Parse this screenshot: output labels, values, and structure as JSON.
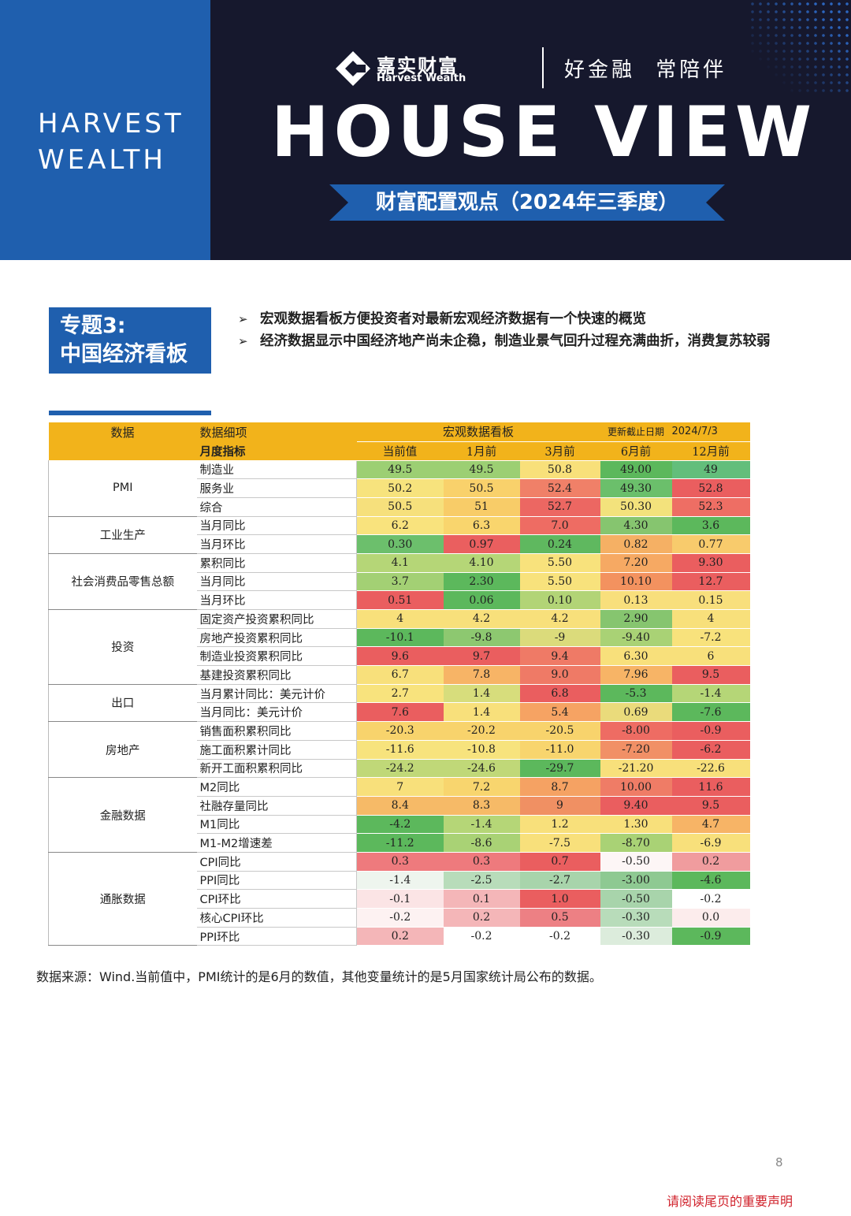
{
  "header": {
    "side_brand_line1": "HARVEST",
    "side_brand_line2": "WEALTH",
    "logo_cn": "嘉实财富",
    "logo_en": "Harvest Wealth",
    "slogan": "好金融 常陪伴",
    "title": "HOUSE VIEW",
    "subtitle": "财富配置观点（2024年三季度）",
    "colors": {
      "navy": "#16182d",
      "brand_blue": "#1f5fae"
    }
  },
  "topic": {
    "line1": "专题3:",
    "line2": "中国经济看板",
    "bullets": [
      "宏观数据看板方便投资者对最新宏观经济数据有一个快速的概览",
      "经济数据显示中国经济地产尚未企稳，制造业景气回升过程充满曲折，消费复苏较弱"
    ]
  },
  "table": {
    "header_row1": {
      "col_data": "数据",
      "col_detail": "数据细项",
      "dashboard_title": "宏观数据看板",
      "update_label": "更新截止日期",
      "update_date": "2024/7/3"
    },
    "header_row2": {
      "section_label": "月度指标",
      "periods": [
        "当前值",
        "1月前",
        "3月前",
        "6月前",
        "12月前"
      ]
    },
    "groups": [
      {
        "name": "PMI",
        "rows": [
          {
            "label": "制造业",
            "values": [
              "49.5",
              "49.5",
              "50.8",
              "49.00",
              "49"
            ],
            "colors": [
              "#9ccf73",
              "#9ccf73",
              "#f8e07a",
              "#5cb85c",
              "#63be7b"
            ]
          },
          {
            "label": "服务业",
            "values": [
              "50.2",
              "50.5",
              "52.4",
              "49.30",
              "52.8"
            ],
            "colors": [
              "#f7e37d",
              "#f9d16b",
              "#f08068",
              "#6bbf6b",
              "#ea5e5f"
            ]
          },
          {
            "label": "综合",
            "values": [
              "50.5",
              "51",
              "52.7",
              "50.30",
              "52.3"
            ],
            "colors": [
              "#f6e07c",
              "#f8cc68",
              "#ec6762",
              "#f3e27c",
              "#ee6e64"
            ]
          }
        ]
      },
      {
        "name": "工业生产",
        "rows": [
          {
            "label": "当月同比",
            "values": [
              "6.2",
              "6.3",
              "7.0",
              "4.30",
              "3.6"
            ],
            "colors": [
              "#f9e37d",
              "#f9d56d",
              "#ee6c63",
              "#86c56f",
              "#5cb85c"
            ]
          },
          {
            "label": "当月环比",
            "values": [
              "0.30",
              "0.97",
              "0.24",
              "0.82",
              "0.77"
            ],
            "colors": [
              "#6cbf6c",
              "#ea5f5f",
              "#5fb85f",
              "#f5b064",
              "#f8cb6c"
            ]
          }
        ]
      },
      {
        "name": "社会消费品零售总额",
        "rows": [
          {
            "label": "累积同比",
            "values": [
              "4.1",
              "4.10",
              "5.50",
              "7.20",
              "9.30"
            ],
            "colors": [
              "#b5d677",
              "#b5d677",
              "#f8e27c",
              "#f6a963",
              "#ea5e5f"
            ]
          },
          {
            "label": "当月同比",
            "values": [
              "3.7",
              "2.30",
              "5.50",
              "10.10",
              "12.7"
            ],
            "colors": [
              "#a3d074",
              "#5cb85c",
              "#f8e27c",
              "#f3925f",
              "#ea5e5f"
            ]
          },
          {
            "label": "当月环比",
            "values": [
              "0.51",
              "0.06",
              "0.10",
              "0.13",
              "0.15"
            ],
            "colors": [
              "#ea5e5f",
              "#5cb85c",
              "#b2d476",
              "#f8df7c",
              "#f8df7c"
            ]
          }
        ]
      },
      {
        "name": "投资",
        "rows": [
          {
            "label": "固定资产投资累积同比",
            "values": [
              "4",
              "4.2",
              "4.2",
              "2.90",
              "4"
            ],
            "colors": [
              "#f8e07b",
              "#f8e07b",
              "#f8e07b",
              "#86c56f",
              "#f8e07b"
            ]
          },
          {
            "label": "房地产投资累积同比",
            "values": [
              "-10.1",
              "-9.8",
              "-9",
              "-9.40",
              "-7.2"
            ],
            "colors": [
              "#5cb85c",
              "#8dc870",
              "#dbdb7b",
              "#a9d275",
              "#f8e27c"
            ]
          },
          {
            "label": "制造业投资累积同比",
            "values": [
              "9.6",
              "9.7",
              "9.4",
              "6.30",
              "6"
            ],
            "colors": [
              "#ea5e5f",
              "#ea5e5f",
              "#ef7a66",
              "#f8e07b",
              "#f8e07b"
            ]
          },
          {
            "label": "基建投资累积同比",
            "values": [
              "6.7",
              "7.8",
              "9.0",
              "7.96",
              "9.5"
            ],
            "colors": [
              "#f8e07b",
              "#f7b466",
              "#ef7a66",
              "#f7b466",
              "#ea5e5f"
            ]
          }
        ]
      },
      {
        "name": "出口",
        "rows": [
          {
            "label": "当月累计同比：美元计价",
            "values": [
              "2.7",
              "1.4",
              "6.8",
              "-5.3",
              "-1.4"
            ],
            "colors": [
              "#f8e37d",
              "#d7dd7c",
              "#ea5e5f",
              "#5cb85c",
              "#b5d677"
            ]
          },
          {
            "label": "当月同比：美元计价",
            "values": [
              "7.6",
              "1.4",
              "5.4",
              "0.69",
              "-7.6"
            ],
            "colors": [
              "#ea5e5f",
              "#f8e07b",
              "#f6a363",
              "#eadb7b",
              "#5cb85c"
            ]
          }
        ]
      },
      {
        "name": "房地产",
        "rows": [
          {
            "label": "销售面积累积同比",
            "values": [
              "-20.3",
              "-20.2",
              "-20.5",
              "-8.00",
              "-0.9"
            ],
            "colors": [
              "#f8d36c",
              "#f8d36c",
              "#f8d36c",
              "#ee6c63",
              "#ea5e5f"
            ]
          },
          {
            "label": "施工面积累计同比",
            "values": [
              "-11.6",
              "-10.8",
              "-11.0",
              "-7.20",
              "-6.2"
            ],
            "colors": [
              "#f7e37d",
              "#f7e37d",
              "#f8d56e",
              "#f19066",
              "#ea5e5f"
            ]
          },
          {
            "label": "新开工面积累积同比",
            "values": [
              "-24.2",
              "-24.6",
              "-29.7",
              "-21.20",
              "-22.6"
            ],
            "colors": [
              "#c0d878",
              "#c0d878",
              "#5cb85c",
              "#f8e07b",
              "#f8e07b"
            ]
          }
        ]
      },
      {
        "name": "金融数据",
        "rows": [
          {
            "label": "M2同比",
            "values": [
              "7",
              "7.2",
              "8.7",
              "10.00",
              "11.6"
            ],
            "colors": [
              "#f8e07b",
              "#f8d56e",
              "#f5a263",
              "#ef7c66",
              "#ea5e5f"
            ]
          },
          {
            "label": "社融存量同比",
            "values": [
              "8.4",
              "8.3",
              "9",
              "9.40",
              "9.5"
            ],
            "colors": [
              "#f6ba67",
              "#f6ba67",
              "#f09063",
              "#ea5e5f",
              "#ea5e5f"
            ]
          },
          {
            "label": "M1同比",
            "values": [
              "-4.2",
              "-1.4",
              "1.2",
              "1.30",
              "4.7"
            ],
            "colors": [
              "#5cb85c",
              "#b5d677",
              "#f8e07b",
              "#f8e07b",
              "#f7b466"
            ]
          },
          {
            "label": "M1-M2增速差",
            "values": [
              "-11.2",
              "-8.6",
              "-7.5",
              "-8.70",
              "-6.9"
            ],
            "colors": [
              "#5cb85c",
              "#a9d275",
              "#f8e07b",
              "#a9d275",
              "#f8e07b"
            ]
          }
        ]
      },
      {
        "name": "通胀数据",
        "rows": [
          {
            "label": "CPI同比",
            "values": [
              "0.3",
              "0.3",
              "0.7",
              "-0.50",
              "0.2"
            ],
            "colors": [
              "#ee7a7d",
              "#ee7a7d",
              "#ea5e5f",
              "#fdf6f6",
              "#f09c9e"
            ]
          },
          {
            "label": "PPI同比",
            "values": [
              "-1.4",
              "-2.5",
              "-2.7",
              "-3.00",
              "-4.6"
            ],
            "colors": [
              "#eef5ee",
              "#b8dcba",
              "#a8d4ab",
              "#8ec992",
              "#5cb85c"
            ]
          },
          {
            "label": "CPI环比",
            "values": [
              "-0.1",
              "0.1",
              "1.0",
              "-0.50",
              "-0.2"
            ],
            "colors": [
              "#fbe4e5",
              "#f4b6b8",
              "#ea5e5f",
              "#a8d4ab",
              "#ffffff"
            ]
          },
          {
            "label": "核心CPI环比",
            "values": [
              "-0.2",
              "0.2",
              "0.5",
              "-0.30",
              "0.0"
            ],
            "colors": [
              "#fdf2f2",
              "#f4b6b8",
              "#ed8084",
              "#b8dcba",
              "#fcecec"
            ]
          },
          {
            "label": "PPI环比",
            "values": [
              "0.2",
              "-0.2",
              "-0.2",
              "-0.30",
              "-0.9"
            ],
            "colors": [
              "#f4b6b8",
              "#ffffff",
              "#ffffff",
              "#dcecdc",
              "#5cb85c"
            ]
          }
        ]
      }
    ]
  },
  "footer": {
    "source_note": "数据来源：Wind.当前值中，PMI统计的是6月的数值，其他变量统计的是5月国家统计局公布的数据。",
    "page_number": "8",
    "disclaimer": "请阅读尾页的重要声明"
  }
}
